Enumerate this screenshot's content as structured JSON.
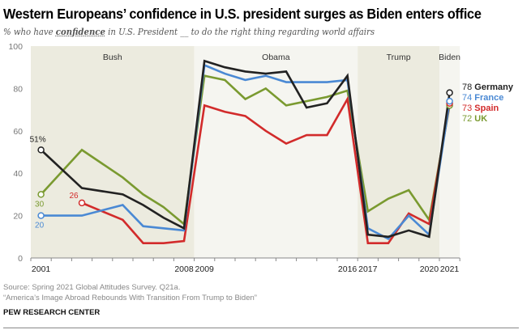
{
  "title": "Western Europeans’ confidence in U.S. president surges as Biden enters office",
  "subtitle": {
    "pre": "% who have ",
    "bold": "confidence",
    "post": " in U.S. President __ to do the right thing regarding world affairs"
  },
  "source": "Source: Spring 2021 Global Attitudes Survey. Q21a.",
  "report": "“America’s Image Abroad Rebounds With Transition From Trump to Biden”",
  "org": "PEW RESEARCH CENTER",
  "chart_data": {
    "type": "line",
    "title": "",
    "ylim": [
      0,
      100
    ],
    "yticks": [
      0,
      20,
      40,
      60,
      80,
      100
    ],
    "xlim": [
      2001,
      2021
    ],
    "xtick_labels": [
      "2001",
      "2008",
      "2009",
      "2016",
      "2017",
      "2020",
      "2021"
    ],
    "eras": [
      {
        "label": "Bush",
        "from": 2001,
        "to": 2008,
        "shade": "#ecebdf"
      },
      {
        "label": "Obama",
        "from": 2009,
        "to": 2016,
        "shade": "#f5f5f0"
      },
      {
        "label": "Trump",
        "from": 2017,
        "to": 2020,
        "shade": "#ecebdf"
      },
      {
        "label": "Biden",
        "from": 2021,
        "to": 2021,
        "shade": "#f5f5f0"
      }
    ],
    "series": [
      {
        "name": "UK",
        "color": "#7a9a30",
        "start_label": "30",
        "end_label": "72",
        "points": [
          [
            2001,
            30
          ],
          [
            2003,
            51
          ],
          [
            2005,
            38
          ],
          [
            2006,
            30
          ],
          [
            2007,
            24
          ],
          [
            2008,
            16
          ],
          [
            2009,
            86
          ],
          [
            2010,
            84
          ],
          [
            2011,
            75
          ],
          [
            2012,
            80
          ],
          [
            2013,
            72
          ],
          [
            2014,
            74
          ],
          [
            2015,
            76
          ],
          [
            2016,
            79
          ],
          [
            2017,
            22
          ],
          [
            2018,
            28
          ],
          [
            2019,
            32
          ],
          [
            2020,
            18
          ],
          [
            2021,
            72
          ]
        ]
      },
      {
        "name": "Spain",
        "color": "#d22b2b",
        "start_label": "26",
        "end_label": "73",
        "points": [
          [
            2003,
            26
          ],
          [
            2005,
            18
          ],
          [
            2006,
            7
          ],
          [
            2007,
            7
          ],
          [
            2008,
            8
          ],
          [
            2009,
            72
          ],
          [
            2010,
            69
          ],
          [
            2011,
            67
          ],
          [
            2012,
            60
          ],
          [
            2013,
            54
          ],
          [
            2014,
            58
          ],
          [
            2015,
            58
          ],
          [
            2016,
            75
          ],
          [
            2017,
            7
          ],
          [
            2018,
            7
          ],
          [
            2019,
            21
          ],
          [
            2020,
            16
          ],
          [
            2021,
            73
          ]
        ]
      },
      {
        "name": "France",
        "color": "#4a89d4",
        "start_label": "20",
        "end_label": "74",
        "points": [
          [
            2001,
            20
          ],
          [
            2003,
            20
          ],
          [
            2005,
            25
          ],
          [
            2006,
            15
          ],
          [
            2007,
            14
          ],
          [
            2008,
            13
          ],
          [
            2009,
            91
          ],
          [
            2010,
            87
          ],
          [
            2011,
            84
          ],
          [
            2012,
            86
          ],
          [
            2013,
            83
          ],
          [
            2014,
            83
          ],
          [
            2015,
            83
          ],
          [
            2016,
            84
          ],
          [
            2017,
            14
          ],
          [
            2018,
            9
          ],
          [
            2019,
            20
          ],
          [
            2020,
            11
          ],
          [
            2021,
            74
          ]
        ]
      },
      {
        "name": "Germany",
        "color": "#222222",
        "start_label": "51%",
        "end_label": "78",
        "points": [
          [
            2001,
            51
          ],
          [
            2003,
            33
          ],
          [
            2005,
            30
          ],
          [
            2006,
            25
          ],
          [
            2007,
            19
          ],
          [
            2008,
            14
          ],
          [
            2009,
            93
          ],
          [
            2010,
            90
          ],
          [
            2011,
            88
          ],
          [
            2012,
            87
          ],
          [
            2013,
            88
          ],
          [
            2014,
            71
          ],
          [
            2015,
            73
          ],
          [
            2016,
            86
          ],
          [
            2017,
            11
          ],
          [
            2018,
            10
          ],
          [
            2019,
            13
          ],
          [
            2020,
            10
          ],
          [
            2021,
            78
          ]
        ]
      }
    ],
    "legend_order": [
      "Germany",
      "France",
      "Spain",
      "UK"
    ],
    "legend_placement": "right",
    "grid": false
  }
}
